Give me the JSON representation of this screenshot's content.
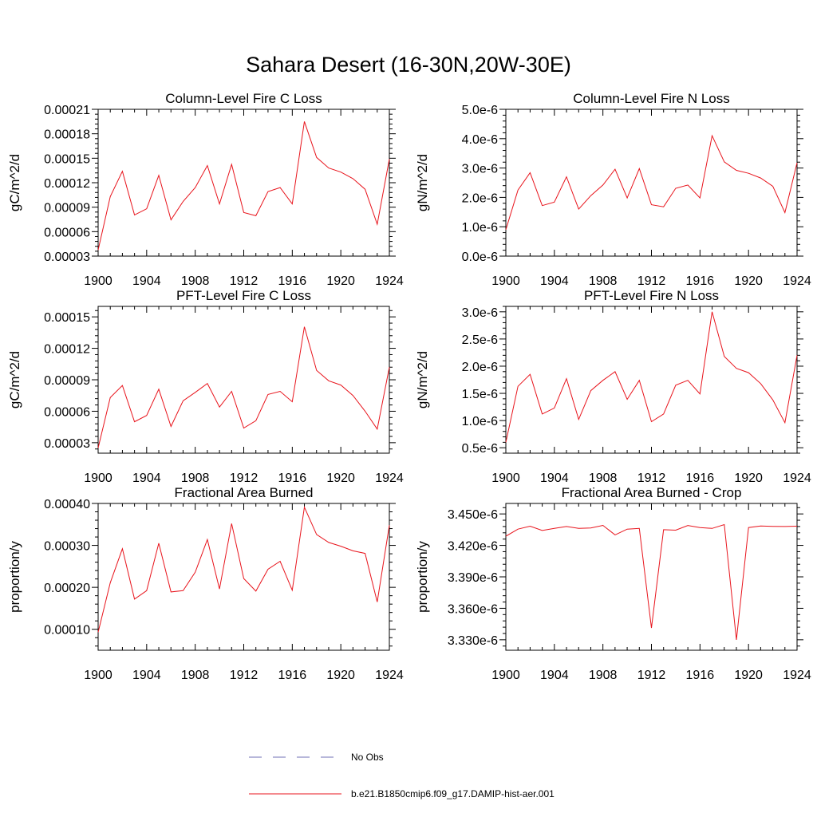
{
  "title": "Sahara Desert (16-30N,20W-30E)",
  "legend": {
    "no_obs": "No Obs",
    "run": "b.e21.B1850cmip6.f09_g17.DAMIP-hist-aer.001"
  },
  "colors": {
    "series": "#e8141c",
    "no_obs": "#6f6fb5"
  },
  "chart_data": [
    {
      "type": "line",
      "title": "Column-Level Fire C Loss",
      "ylabel": "gC/m^2/d",
      "xlim": [
        1900,
        1924
      ],
      "ylim": [
        3e-05,
        0.00021
      ],
      "xticks": [
        "1900",
        "1904",
        "1908",
        "1912",
        "1916",
        "1920",
        "1924"
      ],
      "yticks": [
        {
          "v": 3e-05,
          "label": "0.00003"
        },
        {
          "v": 6e-05,
          "label": "0.00006"
        },
        {
          "v": 9e-05,
          "label": "0.00009"
        },
        {
          "v": 0.00012,
          "label": "0.00012"
        },
        {
          "v": 0.00015,
          "label": "0.00015"
        },
        {
          "v": 0.00018,
          "label": "0.00018"
        },
        {
          "v": 0.00021,
          "label": "0.00021"
        }
      ],
      "x": [
        1900,
        1901,
        1902,
        1903,
        1904,
        1905,
        1906,
        1907,
        1908,
        1909,
        1910,
        1911,
        1912,
        1913,
        1914,
        1915,
        1916,
        1917,
        1918,
        1919,
        1920,
        1921,
        1922,
        1923,
        1924
      ],
      "series": [
        {
          "values": [
            3.75e-05,
            0.000103,
            0.000134,
            8.05e-05,
            8.8e-05,
            0.000129,
            7.45e-05,
            9.7e-05,
            0.000114,
            0.000141,
            9.4e-05,
            0.0001425,
            8.35e-05,
            7.95e-05,
            0.000109,
            0.000114,
            9.4e-05,
            0.000195,
            0.000151,
            0.000138,
            0.000133,
            0.000125,
            0.000112,
            6.9e-05,
            0.000149
          ]
        }
      ]
    },
    {
      "type": "line",
      "title": "Column-Level Fire N Loss",
      "ylabel": "gN/m^2/d",
      "xlim": [
        1900,
        1924
      ],
      "ylim": [
        0.0,
        5e-06
      ],
      "xticks": [
        "1900",
        "1904",
        "1908",
        "1912",
        "1916",
        "1920",
        "1924"
      ],
      "yticks": [
        {
          "v": 0.0,
          "label": "0.0e-6"
        },
        {
          "v": 1e-06,
          "label": "1.0e-6"
        },
        {
          "v": 2e-06,
          "label": "2.0e-6"
        },
        {
          "v": 3e-06,
          "label": "3.0e-6"
        },
        {
          "v": 4e-06,
          "label": "4.0e-6"
        },
        {
          "v": 5e-06,
          "label": "5.0e-6"
        }
      ],
      "x": [
        1900,
        1901,
        1902,
        1903,
        1904,
        1905,
        1906,
        1907,
        1908,
        1909,
        1910,
        1911,
        1912,
        1913,
        1914,
        1915,
        1916,
        1917,
        1918,
        1919,
        1920,
        1921,
        1922,
        1923,
        1924
      ],
      "series": [
        {
          "values": [
            9e-07,
            2.25e-06,
            2.84e-06,
            1.72e-06,
            1.84e-06,
            2.7e-06,
            1.6e-06,
            2.06e-06,
            2.42e-06,
            2.96e-06,
            1.98e-06,
            2.98e-06,
            1.75e-06,
            1.68e-06,
            2.31e-06,
            2.42e-06,
            1.98e-06,
            4.1e-06,
            3.21e-06,
            2.92e-06,
            2.82e-06,
            2.66e-06,
            2.38e-06,
            1.48e-06,
            3.18e-06
          ]
        }
      ]
    },
    {
      "type": "line",
      "title": "PFT-Level Fire C Loss",
      "ylabel": "gC/m^2/d",
      "xlim": [
        1900,
        1924
      ],
      "ylim": [
        2e-05,
        0.00016
      ],
      "xticks": [
        "1900",
        "1904",
        "1908",
        "1912",
        "1916",
        "1920",
        "1924"
      ],
      "yticks": [
        {
          "v": 3e-05,
          "label": "0.00003"
        },
        {
          "v": 6e-05,
          "label": "0.00006"
        },
        {
          "v": 9e-05,
          "label": "0.00009"
        },
        {
          "v": 0.00012,
          "label": "0.00012"
        },
        {
          "v": 0.00015,
          "label": "0.00015"
        }
      ],
      "x": [
        1900,
        1901,
        1902,
        1903,
        1904,
        1905,
        1906,
        1907,
        1908,
        1909,
        1910,
        1911,
        1912,
        1913,
        1914,
        1915,
        1916,
        1917,
        1918,
        1919,
        1920,
        1921,
        1922,
        1923,
        1924
      ],
      "series": [
        {
          "values": [
            2.5e-05,
            7.3e-05,
            8.45e-05,
            5e-05,
            5.6e-05,
            8.1e-05,
            4.55e-05,
            7e-05,
            7.8e-05,
            8.65e-05,
            6.4e-05,
            7.9e-05,
            4.4e-05,
            5.1e-05,
            7.6e-05,
            7.9e-05,
            6.9e-05,
            0.0001405,
            9.9e-05,
            8.9e-05,
            8.5e-05,
            7.5e-05,
            6e-05,
            4.3e-05,
            0.000102
          ]
        }
      ]
    },
    {
      "type": "line",
      "title": "PFT-Level Fire N Loss",
      "ylabel": "gN/m^2/d",
      "xlim": [
        1900,
        1924
      ],
      "ylim": [
        4e-07,
        3.1e-06
      ],
      "xticks": [
        "1900",
        "1904",
        "1908",
        "1912",
        "1916",
        "1920",
        "1924"
      ],
      "yticks": [
        {
          "v": 5e-07,
          "label": "0.5e-6"
        },
        {
          "v": 1e-06,
          "label": "1.0e-6"
        },
        {
          "v": 1.5e-06,
          "label": "1.5e-6"
        },
        {
          "v": 2e-06,
          "label": "2.0e-6"
        },
        {
          "v": 2.5e-06,
          "label": "2.5e-6"
        },
        {
          "v": 3e-06,
          "label": "3.0e-6"
        }
      ],
      "x": [
        1900,
        1901,
        1902,
        1903,
        1904,
        1905,
        1906,
        1907,
        1908,
        1909,
        1910,
        1911,
        1912,
        1913,
        1914,
        1915,
        1916,
        1917,
        1918,
        1919,
        1920,
        1921,
        1922,
        1923,
        1924
      ],
      "series": [
        {
          "values": [
            6e-07,
            1.63e-06,
            1.85e-06,
            1.12e-06,
            1.23e-06,
            1.77e-06,
            1.02e-06,
            1.55e-06,
            1.74e-06,
            1.9e-06,
            1.39e-06,
            1.74e-06,
            9.8e-07,
            1.12e-06,
            1.65e-06,
            1.74e-06,
            1.49e-06,
            3e-06,
            2.18e-06,
            1.96e-06,
            1.88e-06,
            1.68e-06,
            1.38e-06,
            9.6e-07,
            2.2e-06
          ]
        }
      ]
    },
    {
      "type": "line",
      "title": "Fractional Area Burned",
      "ylabel": "proportion/y",
      "xlim": [
        1900,
        1924
      ],
      "ylim": [
        5e-05,
        0.0004
      ],
      "xticks": [
        "1900",
        "1904",
        "1908",
        "1912",
        "1916",
        "1920",
        "1924"
      ],
      "yticks": [
        {
          "v": 0.0001,
          "label": "0.00010"
        },
        {
          "v": 0.0002,
          "label": "0.00020"
        },
        {
          "v": 0.0003,
          "label": "0.00030"
        },
        {
          "v": 0.0004,
          "label": "0.00040"
        }
      ],
      "x": [
        1900,
        1901,
        1902,
        1903,
        1904,
        1905,
        1906,
        1907,
        1908,
        1909,
        1910,
        1911,
        1912,
        1913,
        1914,
        1915,
        1916,
        1917,
        1918,
        1919,
        1920,
        1921,
        1922,
        1923,
        1924
      ],
      "series": [
        {
          "values": [
            9.3e-05,
            0.000211,
            0.000292,
            0.000172,
            0.000192,
            0.000305,
            0.000189,
            0.000192,
            0.000236,
            0.000314,
            0.000196,
            0.000352,
            0.000221,
            0.000191,
            0.000243,
            0.000262,
            0.000193,
            0.000391,
            0.000326,
            0.000307,
            0.000298,
            0.000287,
            0.000281,
            0.000165,
            0.000348
          ]
        }
      ]
    },
    {
      "type": "line",
      "title": "Fractional Area Burned - Crop",
      "ylabel": "proportion/y",
      "xlim": [
        1900,
        1924
      ],
      "ylim": [
        3.32e-06,
        3.46e-06
      ],
      "xticks": [
        "1900",
        "1904",
        "1908",
        "1912",
        "1916",
        "1920",
        "1924"
      ],
      "yticks": [
        {
          "v": 3.33e-06,
          "label": "3.330e-6"
        },
        {
          "v": 3.36e-06,
          "label": "3.360e-6"
        },
        {
          "v": 3.39e-06,
          "label": "3.390e-6"
        },
        {
          "v": 3.42e-06,
          "label": "3.420e-6"
        },
        {
          "v": 3.45e-06,
          "label": "3.450e-6"
        }
      ],
      "x": [
        1900,
        1901,
        1902,
        1903,
        1904,
        1905,
        1906,
        1907,
        1908,
        1909,
        1910,
        1911,
        1912,
        1913,
        1914,
        1915,
        1916,
        1917,
        1918,
        1919,
        1920,
        1921,
        1922,
        1923,
        1924
      ],
      "series": [
        {
          "values": [
            3.4287e-06,
            3.4355e-06,
            3.4383e-06,
            3.4342e-06,
            3.4362e-06,
            3.438e-06,
            3.4362e-06,
            3.4366e-06,
            3.4391e-06,
            3.43e-06,
            3.4355e-06,
            3.4362e-06,
            3.3412e-06,
            3.435e-06,
            3.4345e-06,
            3.439e-06,
            3.437e-06,
            3.4362e-06,
            3.4398e-06,
            3.33e-06,
            3.437e-06,
            3.4385e-06,
            3.4382e-06,
            3.438e-06,
            3.4383e-06
          ]
        }
      ]
    }
  ]
}
